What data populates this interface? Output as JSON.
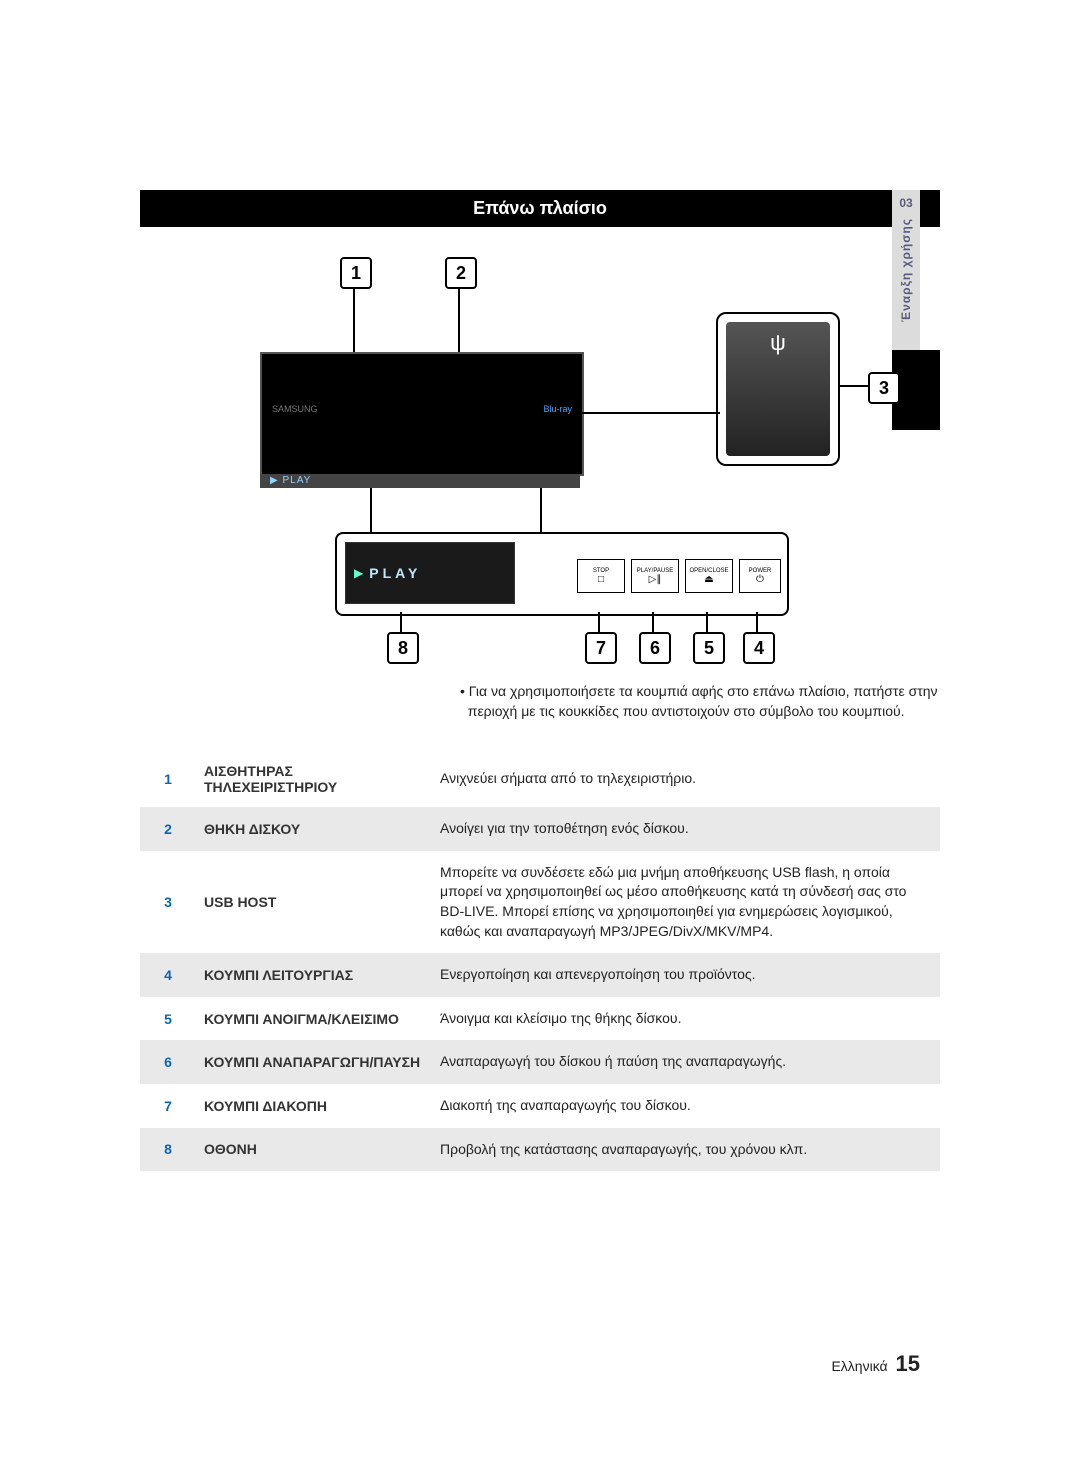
{
  "header": {
    "title": "Επάνω πλαίσιο"
  },
  "side_tab": {
    "section_number": "03",
    "label": "Έναρξη χρήσης"
  },
  "diagram": {
    "play_text": "PLAY",
    "tv_brand": "SAMSUNG",
    "tv_disc_logo": "Blu-ray",
    "buttons": {
      "stop": {
        "label": "STOP",
        "symbol": "□"
      },
      "play": {
        "label": "PLAY/PAUSE",
        "symbol": "▷∥"
      },
      "open": {
        "label": "OPEN/CLOSE",
        "symbol": "⏏"
      },
      "power": {
        "label": "POWER",
        "symbol": "⏻"
      }
    },
    "usb_symbol": "⎙"
  },
  "callouts": [
    "1",
    "2",
    "3",
    "4",
    "5",
    "6",
    "7",
    "8"
  ],
  "note": {
    "bullet": "•",
    "line1": "Για να χρησιμοποιήσετε τα κουμπιά αφής στο επάνω πλαίσιο, πατήστε στην",
    "line2": "περιοχή με τις κουκκίδες που αντιστοιχούν στο σύμβολο του κουμπιού."
  },
  "rows": [
    {
      "n": "1",
      "name": "ΑΙΣΘΗΤΗΡΑΣ ΤΗΛΕΧΕΙΡΙΣΤΗΡΙΟΥ",
      "desc": "Ανιχνεύει σήματα από το τηλεχειριστήριο."
    },
    {
      "n": "2",
      "name": "ΘΗΚΗ ΔΙΣΚΟΥ",
      "desc": "Ανοίγει για την τοποθέτηση ενός δίσκου."
    },
    {
      "n": "3",
      "name": "USB HOST",
      "desc": "Μπορείτε να συνδέσετε εδώ μια μνήμη αποθήκευσης USB flash, η οποία μπορεί να χρησιμοποιηθεί ως μέσο αποθήκευσης κατά τη σύνδεσή σας στο BD-LIVE. Μπορεί επίσης να χρησιμοποιηθεί για ενημερώσεις λογισμικού, καθώς και αναπαραγωγή MP3/JPEG/DivX/MKV/MP4."
    },
    {
      "n": "4",
      "name": "ΚΟΥΜΠΙ ΛΕΙΤΟΥΡΓΙΑΣ",
      "desc": "Ενεργοποίηση και απενεργοποίηση του προϊόντος."
    },
    {
      "n": "5",
      "name": "ΚΟΥΜΠΙ ΑΝΟΙΓΜΑ/ΚΛΕΙΣΙΜΟ",
      "desc": "Άνοιγμα και κλείσιμο της θήκης δίσκου."
    },
    {
      "n": "6",
      "name": "ΚΟΥΜΠΙ ΑΝΑΠΑΡΑΓΩΓΗ/ΠΑΥΣΗ",
      "desc": "Αναπαραγωγή του δίσκου ή παύση της αναπαραγωγής."
    },
    {
      "n": "7",
      "name": "ΚΟΥΜΠΙ ΔΙΑΚΟΠΗ",
      "desc": "Διακοπή της αναπαραγωγής του δίσκου."
    },
    {
      "n": "8",
      "name": "ΟΘΟΝΗ",
      "desc": "Προβολή της κατάστασης αναπαραγωγής, του χρόνου κλπ."
    }
  ],
  "footer": {
    "lang": "Ελληνικά",
    "page": "15"
  },
  "colors": {
    "header_bg": "#000000",
    "header_fg": "#ffffff",
    "num_color": "#0a66b5",
    "alt_row_bg": "#e9e9e9",
    "side_tab_bg": "#dcdcdc"
  }
}
